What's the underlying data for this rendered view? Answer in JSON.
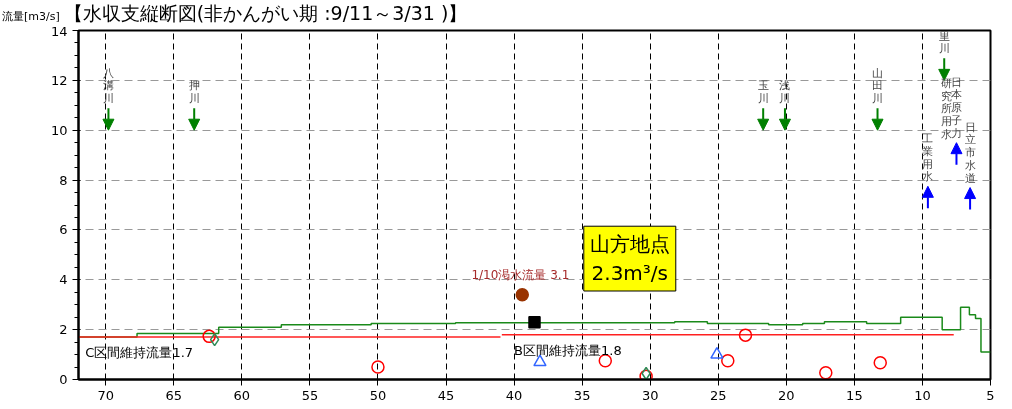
{
  "chart_data": {
    "type": "step",
    "title": "【水収支縦断図(非かんがい期 :9/11～3/31 )】",
    "ylabel": "流量[m3/s]",
    "xlim": [
      72,
      5
    ],
    "xticks": [
      70,
      65,
      60,
      55,
      50,
      45,
      40,
      35,
      30,
      25,
      20,
      15,
      10,
      5
    ],
    "ylim": [
      0,
      14
    ],
    "yticks": [
      0,
      2,
      4,
      6,
      8,
      10,
      12,
      14
    ],
    "grid": true,
    "series": [
      {
        "color": "#1a8a1a",
        "x": [
          72,
          67.7,
          61.7,
          57.1,
          50.5,
          44.3,
          28.2,
          25.8,
          21.3,
          18.8,
          17.2,
          14.1,
          11.6,
          8.55,
          7.2,
          6.55,
          6.1,
          5.7,
          5
        ],
        "values": [
          1.7,
          1.85,
          2.1,
          2.2,
          2.25,
          2.28,
          2.32,
          2.25,
          2.2,
          2.25,
          2.32,
          2.25,
          2.5,
          2.0,
          2.9,
          2.6,
          2.45,
          1.1,
          1.1
        ]
      },
      {
        "type": "line",
        "color": "#ff2020",
        "x": [
          72,
          41
        ],
        "values": [
          1.7,
          1.7
        ]
      },
      {
        "type": "line",
        "color": "#ff2020",
        "x": [
          40.9,
          7.7
        ],
        "values": [
          1.8,
          1.8
        ]
      },
      {
        "type": "scatter",
        "marker": "circle",
        "color": "#ff0000",
        "x": [
          62.4,
          50,
          33.3,
          23.0,
          24.3,
          30.3,
          17.1,
          13.1
        ],
        "values": [
          1.73,
          0.5,
          0.75,
          1.78,
          0.75,
          0.13,
          0.27,
          0.67
        ]
      },
      {
        "type": "scatter",
        "marker": "triangle",
        "color": "#3366ff",
        "x": [
          38.1,
          25.1
        ],
        "values": [
          0.7,
          1.0
        ]
      },
      {
        "type": "scatter",
        "marker": "diamond",
        "color": "#2e8b57",
        "x": [
          62.0,
          30.3
        ],
        "values": [
          1.6,
          0.24
        ]
      },
      {
        "type": "scatter",
        "marker": "circle",
        "color": "#993300",
        "x": [
          39.4
        ],
        "values": [
          3.4
        ]
      },
      {
        "type": "scatter",
        "marker": "square",
        "color": "#000000",
        "x": [
          38.5
        ],
        "values": [
          2.3
        ]
      }
    ],
    "annotations": [
      "C区間維持流量1.7",
      "B区間維持流量1.8",
      "1/10渇水流量  3.1",
      "山方地点\n2.3m³/s",
      "八溝川",
      "押川",
      "玉川",
      "浅川",
      "山田川",
      "里川",
      "工業用水",
      "日本原子力",
      "研究所用水",
      "日立市水道"
    ]
  }
}
